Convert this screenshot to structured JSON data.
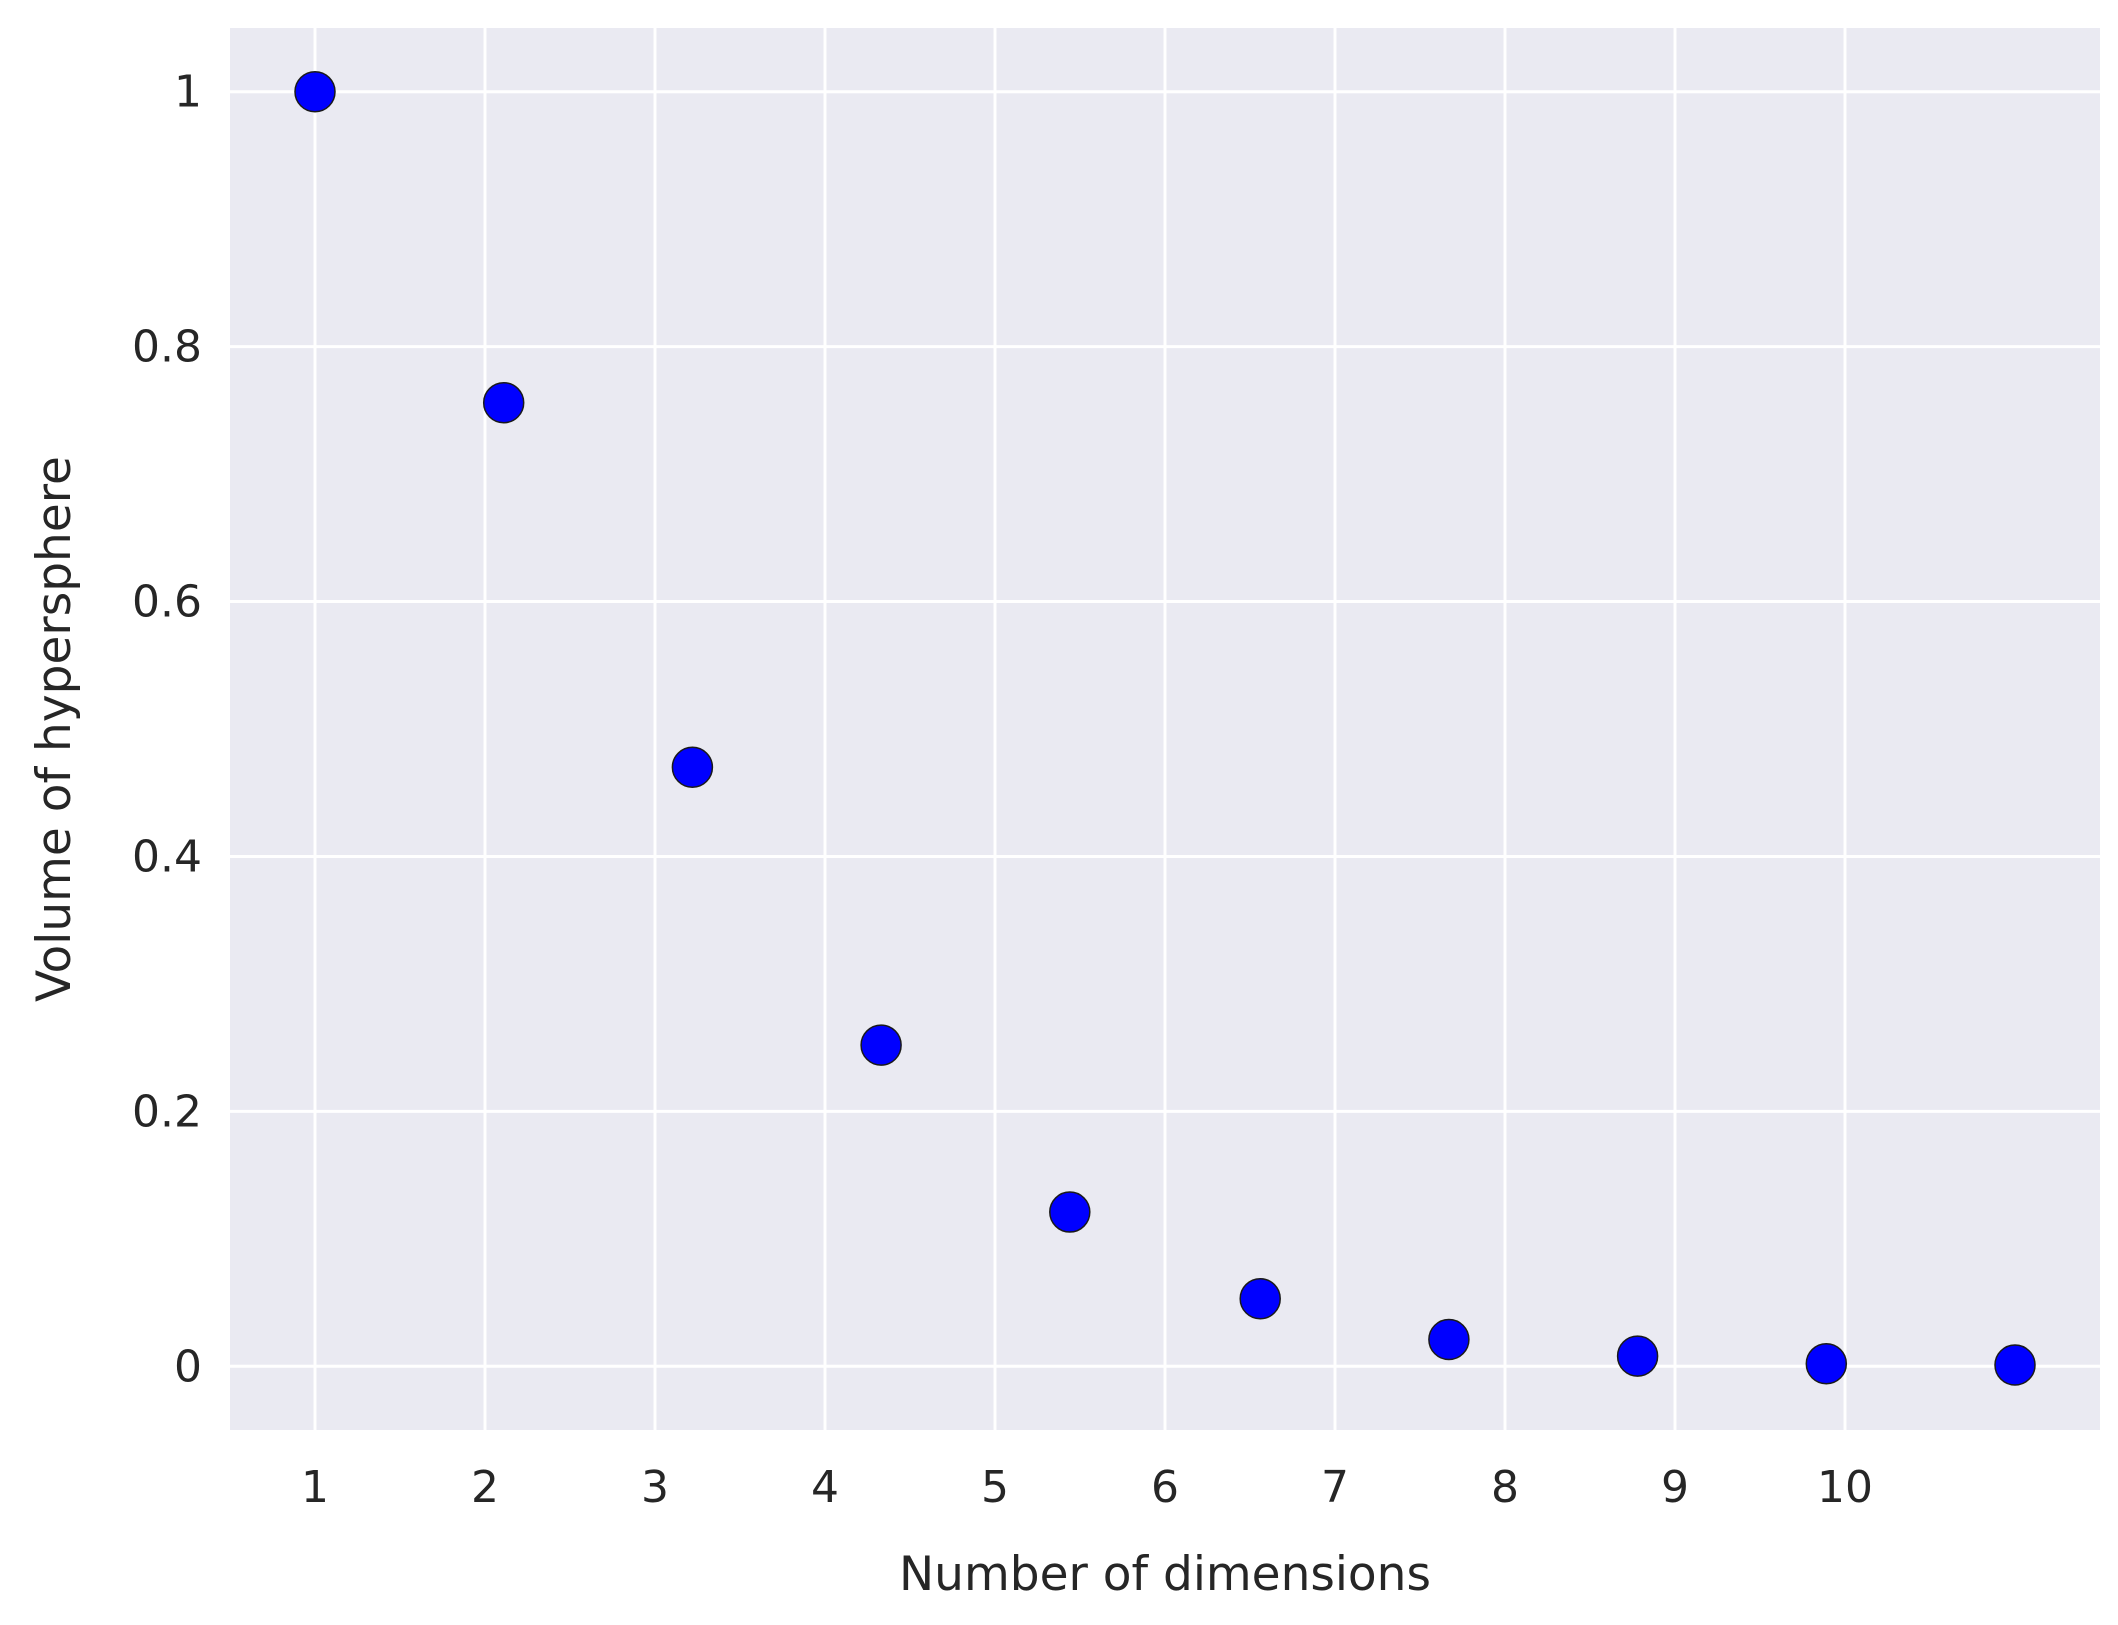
{
  "chart_data": {
    "type": "scatter",
    "title": "",
    "xlabel": "Number of dimensions",
    "ylabel": "Volume of hypersphere",
    "xlim": [
      0.5,
      11.5
    ],
    "ylim": [
      -0.05,
      1.05
    ],
    "xticks": [
      1,
      2,
      3,
      4,
      5,
      6,
      7,
      8,
      9,
      10
    ],
    "xtick_labels": [
      "1",
      "2",
      "3",
      "4",
      "5",
      "6",
      "7",
      "8",
      "9",
      "10"
    ],
    "yticks": [
      0,
      0.2,
      0.4,
      0.6,
      0.8,
      1
    ],
    "ytick_labels": [
      "0",
      "0.2",
      "0.4",
      "0.6",
      "0.8",
      "1"
    ],
    "grid": true,
    "background": "#eaeaf2",
    "marker_color": "#0000ff",
    "series": [
      {
        "x": [
          1,
          2.11,
          3.22,
          4.33,
          5.44,
          6.56,
          7.67,
          8.78,
          9.89,
          11
        ],
        "y": [
          1.0,
          0.756,
          0.47,
          0.252,
          0.121,
          0.053,
          0.021,
          0.008,
          0.002,
          0.001
        ]
      }
    ]
  }
}
